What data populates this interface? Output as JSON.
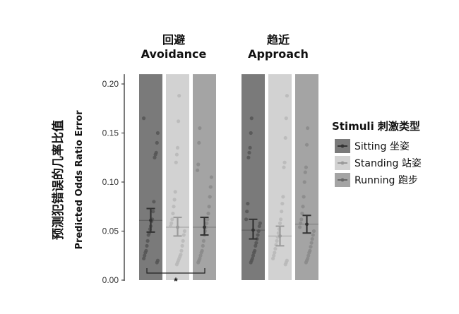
{
  "chart_data": {
    "type": "bar",
    "ylabel": [
      "预测犯错误的几率比值",
      "Predicted Odds Ratio Error"
    ],
    "ylim": [
      0,
      0.21
    ],
    "yticks": [
      "0.00",
      "0.05",
      "0.10",
      "0.15",
      "0.20"
    ],
    "ytick_values": [
      0,
      0.05,
      0.1,
      0.15,
      0.2
    ],
    "legend": {
      "title": "Stimuli 刺激类型",
      "placement": "right",
      "entries": [
        "Sitting 坐姿",
        "Standing 站姿",
        "Running 跑步"
      ]
    },
    "panels": [
      {
        "title_cn": "回避",
        "title_en": "Avoidance",
        "series": [
          {
            "values": [
              0.061
            ],
            "err_low": 0.049,
            "err_high": 0.073,
            "color": "#7a7a7a",
            "points": [
              0.165,
              0.15,
              0.14,
              0.13,
              0.128,
              0.125,
              0.08,
              0.07,
              0.062,
              0.06,
              0.055,
              0.052,
              0.048,
              0.046,
              0.04,
              0.035,
              0.03,
              0.028,
              0.025,
              0.022,
              0.02,
              0.018
            ]
          },
          {
            "values": [
              0.054
            ],
            "err_low": 0.045,
            "err_high": 0.064,
            "color": "#d2d2d2",
            "points": [
              0.188,
              0.162,
              0.135,
              0.128,
              0.12,
              0.09,
              0.082,
              0.075,
              0.068,
              0.062,
              0.058,
              0.055,
              0.05,
              0.046,
              0.04,
              0.035,
              0.03,
              0.026,
              0.024,
              0.022,
              0.02,
              0.018,
              0.016
            ]
          },
          {
            "values": [
              0.054
            ],
            "err_low": 0.046,
            "err_high": 0.064,
            "color": "#a4a4a4",
            "points": [
              0.155,
              0.14,
              0.118,
              0.112,
              0.105,
              0.095,
              0.085,
              0.075,
              0.068,
              0.062,
              0.058,
              0.054,
              0.05,
              0.046,
              0.04,
              0.035,
              0.03,
              0.028,
              0.025,
              0.022,
              0.02,
              0.018
            ]
          }
        ],
        "significance": "*"
      },
      {
        "title_cn": "趋近",
        "title_en": "Approach",
        "series": [
          {
            "values": [
              0.051
            ],
            "err_low": 0.042,
            "err_high": 0.062,
            "color": "#7a7a7a",
            "points": [
              0.165,
              0.15,
              0.135,
              0.13,
              0.125,
              0.078,
              0.07,
              0.062,
              0.058,
              0.055,
              0.05,
              0.046,
              0.042,
              0.038,
              0.035,
              0.03,
              0.028,
              0.025,
              0.022,
              0.02,
              0.018
            ]
          },
          {
            "values": [
              0.045
            ],
            "err_low": 0.035,
            "err_high": 0.055,
            "color": "#d2d2d2",
            "points": [
              0.188,
              0.165,
              0.145,
              0.12,
              0.115,
              0.085,
              0.078,
              0.07,
              0.062,
              0.058,
              0.052,
              0.048,
              0.044,
              0.04,
              0.036,
              0.032,
              0.028,
              0.025,
              0.022,
              0.02,
              0.018,
              0.016
            ]
          },
          {
            "values": [
              0.057
            ],
            "err_low": 0.048,
            "err_high": 0.066,
            "color": "#a4a4a4",
            "points": [
              0.155,
              0.138,
              0.115,
              0.11,
              0.1,
              0.085,
              0.075,
              0.068,
              0.062,
              0.058,
              0.054,
              0.05,
              0.046,
              0.042,
              0.038,
              0.034,
              0.03,
              0.028,
              0.025,
              0.022,
              0.02,
              0.018
            ]
          }
        ]
      }
    ]
  }
}
